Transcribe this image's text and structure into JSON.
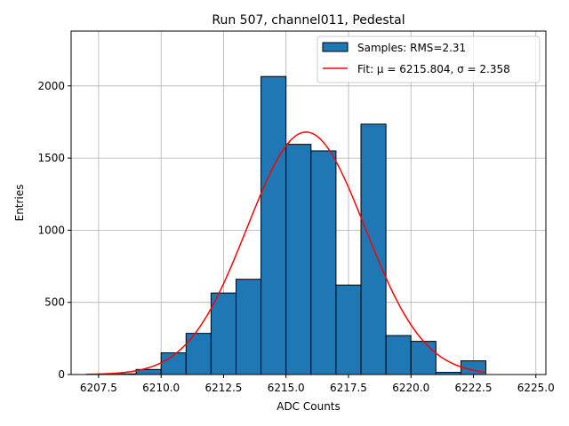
{
  "chart_data": {
    "type": "bar",
    "title": "Run 507, channel011, Pedestal",
    "xlabel": "ADC Counts",
    "ylabel": "Entries",
    "xlim": [
      6206.4,
      6225.4
    ],
    "ylim": [
      0,
      2380
    ],
    "grid": true,
    "legend_position": "top-right",
    "xticks": [
      6207.5,
      6210.0,
      6212.5,
      6215.0,
      6217.5,
      6220.0,
      6222.5,
      6225.0
    ],
    "xtick_labels": [
      "6207.5",
      "6210.0",
      "6212.5",
      "6215.0",
      "6217.5",
      "6220.0",
      "6222.5",
      "6225.0"
    ],
    "yticks": [
      0,
      500,
      1000,
      1500,
      2000
    ],
    "ytick_labels": [
      "0",
      "500",
      "1000",
      "1500",
      "2000"
    ],
    "histogram": {
      "name": "Samples: RMS=2.31",
      "color": "#1f77b4",
      "edge_color": "#000000",
      "bin_edges": [
        6208,
        6209,
        6210,
        6211,
        6212,
        6213,
        6214,
        6215,
        6216,
        6217,
        6218,
        6219,
        6220,
        6221,
        6222,
        6223
      ],
      "counts": [
        5,
        35,
        150,
        285,
        565,
        660,
        2065,
        1595,
        1550,
        620,
        1735,
        270,
        230,
        15,
        95
      ]
    },
    "fit": {
      "name": "Fit: μ = 6215.804, σ = 2.358",
      "color": "#ff0000",
      "mu": 6215.804,
      "sigma": 2.358,
      "amplitude": 1680,
      "x_range": [
        6207.0,
        6223.0
      ]
    }
  }
}
